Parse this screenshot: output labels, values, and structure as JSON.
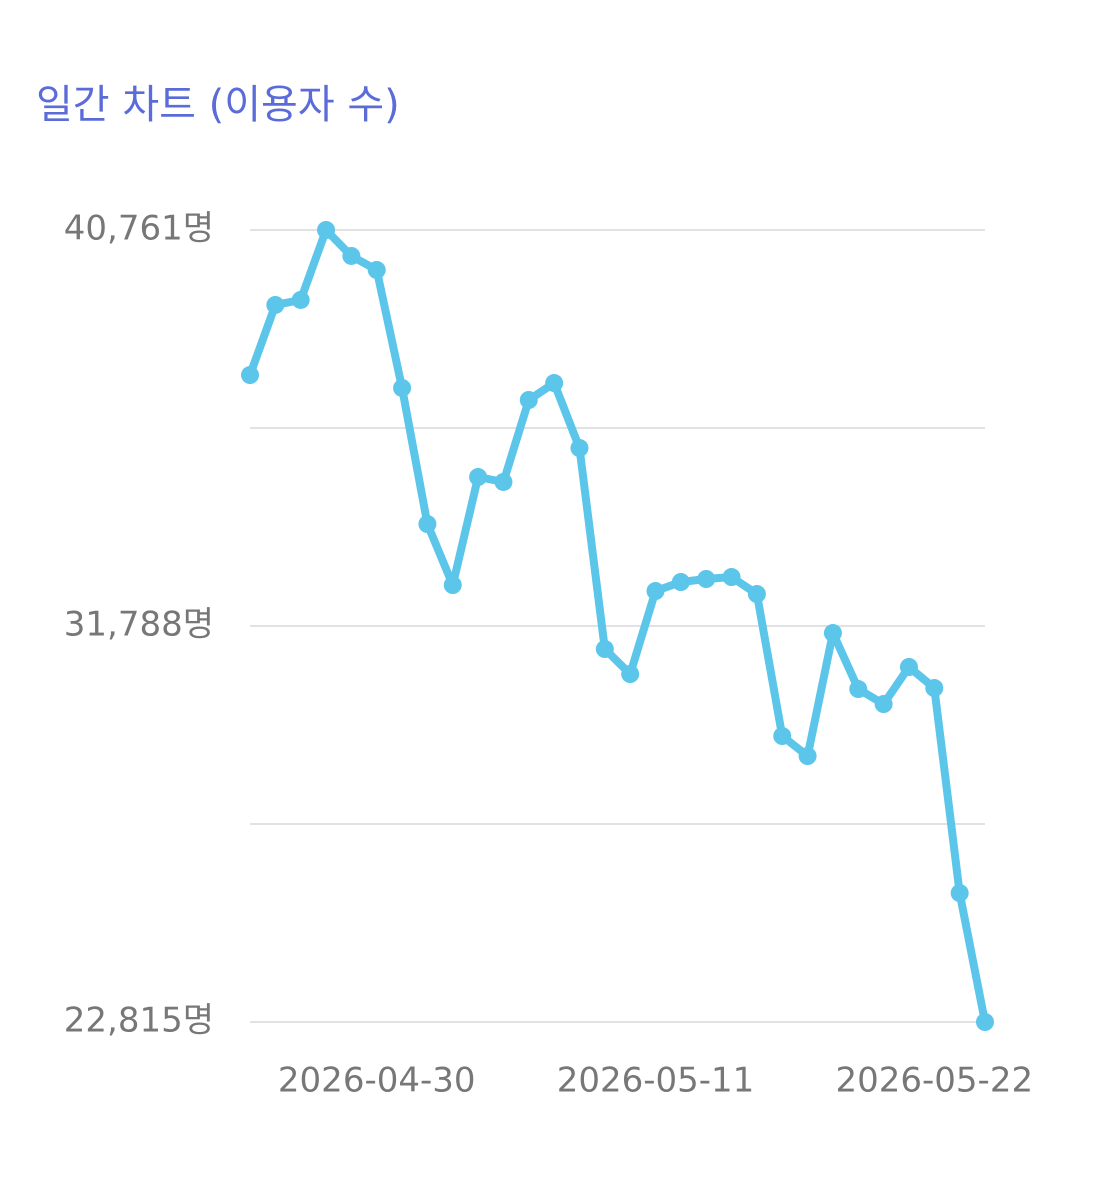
{
  "chart_data": {
    "type": "line",
    "title": "일간 차트 (이용자 수)",
    "x": [
      "2026-04-25",
      "2026-04-26",
      "2026-04-27",
      "2026-04-28",
      "2026-04-29",
      "2026-04-30",
      "2026-05-01",
      "2026-05-02",
      "2026-05-03",
      "2026-05-04",
      "2026-05-05",
      "2026-05-06",
      "2026-05-07",
      "2026-05-08",
      "2026-05-09",
      "2026-05-10",
      "2026-05-11",
      "2026-05-12",
      "2026-05-13",
      "2026-05-14",
      "2026-05-15",
      "2026-05-16",
      "2026-05-17",
      "2026-05-18",
      "2026-05-19",
      "2026-05-20",
      "2026-05-21",
      "2026-05-22",
      "2026-05-23",
      "2026-05-24"
    ],
    "series": [
      {
        "name": "이용자 수",
        "color": "#5bc5ea",
        "values": [
          37475,
          39062,
          39175,
          40761,
          40172,
          39855,
          37181,
          34099,
          32717,
          35164,
          35051,
          36909,
          37294,
          35821,
          31266,
          30700,
          32581,
          32785,
          32853,
          32898,
          32513,
          29295,
          28842,
          31629,
          30360,
          30020,
          30859,
          30383,
          25737,
          22815
        ]
      }
    ],
    "xlim": [
      "2026-04-25",
      "2026-05-24"
    ],
    "xticks": [
      "2026-04-30",
      "2026-05-11",
      "2026-05-22"
    ],
    "ylim": [
      22815,
      40761
    ],
    "yticks": [
      {
        "value": 22815,
        "label": "22,815명"
      },
      {
        "value": 27301.5,
        "label": null
      },
      {
        "value": 31788,
        "label": "31,788명"
      },
      {
        "value": 36274.5,
        "label": null
      },
      {
        "value": 40761,
        "label": "40,761명"
      }
    ],
    "grid": true
  }
}
